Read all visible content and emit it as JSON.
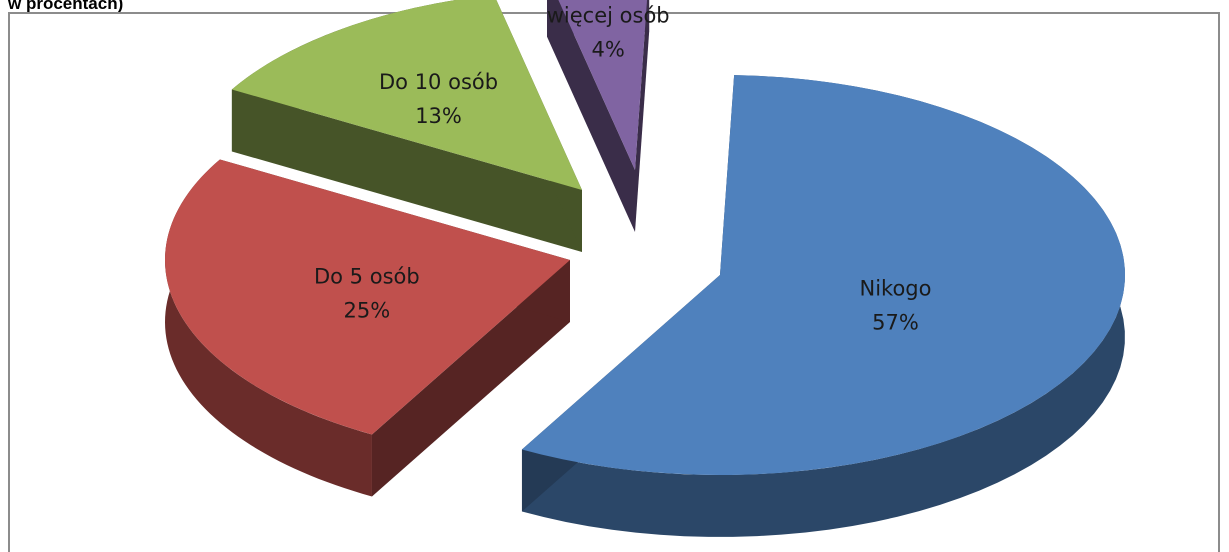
{
  "page": {
    "caption": "w procentach)"
  },
  "chart_data": {
    "type": "pie",
    "style": "3d-exploded",
    "title": "",
    "legend": "none",
    "slices": [
      {
        "label": "Nikogo",
        "value": 57,
        "value_label": "57%",
        "color": "#4f81bd"
      },
      {
        "label": "Do 5 osób",
        "value": 25,
        "value_label": "25%",
        "color": "#c0504d"
      },
      {
        "label": "Do 10 osób",
        "value": 13,
        "value_label": "13%",
        "color": "#9bbb59"
      },
      {
        "label": "więcej osób",
        "value": 4,
        "value_label": "4%",
        "color": "#8064a2"
      }
    ]
  }
}
